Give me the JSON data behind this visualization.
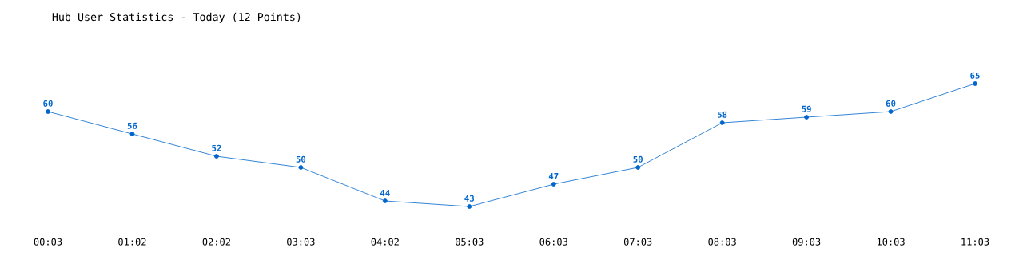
{
  "chart_data": {
    "type": "line",
    "title": "Hub User Statistics - Today (12 Points)",
    "categories": [
      "00:03",
      "01:02",
      "02:02",
      "03:03",
      "04:02",
      "05:03",
      "06:03",
      "07:03",
      "08:03",
      "09:03",
      "10:03",
      "11:03"
    ],
    "values": [
      60,
      56,
      52,
      50,
      44,
      43,
      47,
      50,
      58,
      59,
      60,
      65
    ],
    "color": "#0066cc",
    "marker": "circle",
    "line_style": "solid",
    "data_labels": true
  }
}
